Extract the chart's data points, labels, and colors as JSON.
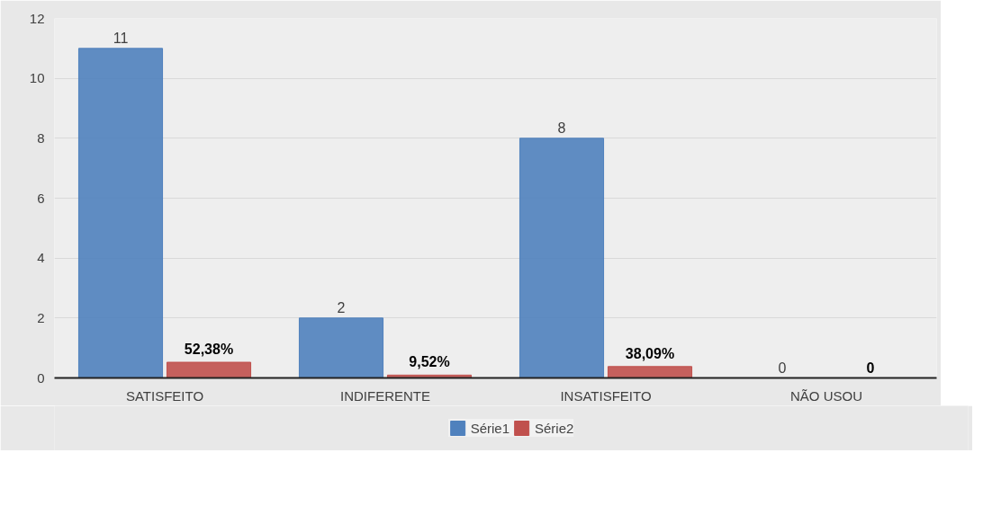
{
  "chart_data": {
    "type": "bar",
    "categories": [
      "SATISFEITO",
      "INDIFERENTE",
      "INSATISFEITO",
      "NÃO USOU"
    ],
    "series": [
      {
        "name": "Série1",
        "color": "#4f81bd",
        "values": [
          11,
          2,
          8,
          0
        ],
        "value_labels": [
          "11",
          "2",
          "8",
          "0"
        ]
      },
      {
        "name": "Série2",
        "color": "#c0504d",
        "values": [
          0.5238,
          0.0952,
          0.3809,
          0
        ],
        "value_labels": [
          "52,38%",
          "9,52%",
          "38,09%",
          "0"
        ]
      }
    ],
    "ylim": [
      0,
      12
    ],
    "yticks": [
      0,
      2,
      4,
      6,
      8,
      10,
      12
    ],
    "grid": "y",
    "legend": "bottom"
  }
}
